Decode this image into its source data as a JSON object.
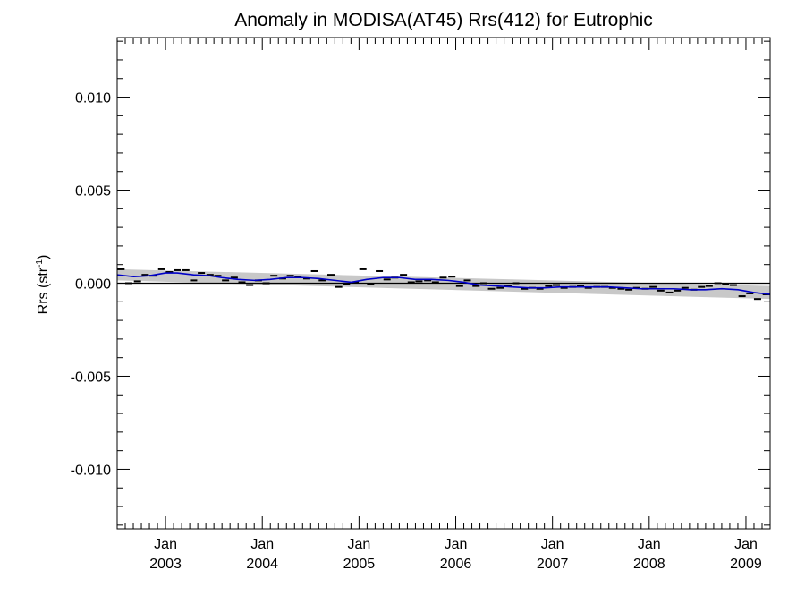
{
  "chart_data": {
    "type": "scatter",
    "title": "Anomaly in MODISA(AT45) Rrs(412) for Eutrophic",
    "xlabel": "",
    "ylabel": "Rrs (str",
    "ylabel_sup": "-1",
    "ylabel_close": ")",
    "xlim": [
      2002.5,
      2009.25
    ],
    "ylim": [
      -0.0132,
      0.0132
    ],
    "x_ticks": [
      {
        "value": 2003.0,
        "month": "Jan",
        "year": "2003"
      },
      {
        "value": 2004.0,
        "month": "Jan",
        "year": "2004"
      },
      {
        "value": 2005.0,
        "month": "Jan",
        "year": "2005"
      },
      {
        "value": 2006.0,
        "month": "Jan",
        "year": "2006"
      },
      {
        "value": 2007.0,
        "month": "Jan",
        "year": "2007"
      },
      {
        "value": 2008.0,
        "month": "Jan",
        "year": "2008"
      },
      {
        "value": 2009.0,
        "month": "Jan",
        "year": "2009"
      }
    ],
    "y_ticks": [
      {
        "value": 0.01,
        "label": "0.010"
      },
      {
        "value": 0.005,
        "label": "0.005"
      },
      {
        "value": 0.0,
        "label": "0.000"
      },
      {
        "value": -0.005,
        "label": "-0.005"
      },
      {
        "value": -0.01,
        "label": "-0.010"
      }
    ],
    "zero_line": true,
    "grid": false,
    "series": [
      {
        "kind": "markers",
        "color": "#000000",
        "points": [
          [
            2002.54,
            0.00075
          ],
          [
            2002.62,
            0.0
          ],
          [
            2002.71,
            0.0001
          ],
          [
            2002.79,
            0.00045
          ],
          [
            2002.87,
            0.0004
          ],
          [
            2002.96,
            0.00075
          ],
          [
            2003.04,
            0.0006
          ],
          [
            2003.12,
            0.0007
          ],
          [
            2003.21,
            0.0007
          ],
          [
            2003.29,
            0.00015
          ],
          [
            2003.37,
            0.00055
          ],
          [
            2003.46,
            0.00045
          ],
          [
            2003.54,
            0.0004
          ],
          [
            2003.62,
            0.00015
          ],
          [
            2003.71,
            0.0003
          ],
          [
            2003.79,
            5e-05
          ],
          [
            2003.87,
            -0.0001
          ],
          [
            2003.96,
            0.00015
          ],
          [
            2004.04,
            0.0
          ],
          [
            2004.12,
            0.0004
          ],
          [
            2004.21,
            0.00025
          ],
          [
            2004.29,
            0.0004
          ],
          [
            2004.37,
            0.00035
          ],
          [
            2004.46,
            0.00025
          ],
          [
            2004.54,
            0.00065
          ],
          [
            2004.62,
            0.00015
          ],
          [
            2004.71,
            0.00045
          ],
          [
            2004.79,
            -0.0002
          ],
          [
            2004.87,
            -5e-05
          ],
          [
            2004.96,
            5e-05
          ],
          [
            2005.04,
            0.00075
          ],
          [
            2005.12,
            -5e-05
          ],
          [
            2005.21,
            0.00065
          ],
          [
            2005.29,
            0.0002
          ],
          [
            2005.37,
            0.0003
          ],
          [
            2005.46,
            0.00045
          ],
          [
            2005.54,
            5e-05
          ],
          [
            2005.62,
            0.0001
          ],
          [
            2005.71,
            0.00015
          ],
          [
            2005.79,
            5e-05
          ],
          [
            2005.87,
            0.0003
          ],
          [
            2005.96,
            0.00035
          ],
          [
            2006.04,
            -0.00015
          ],
          [
            2006.12,
            0.00015
          ],
          [
            2006.21,
            -0.00015
          ],
          [
            2006.29,
            0.0
          ],
          [
            2006.37,
            -0.0003
          ],
          [
            2006.46,
            -0.00025
          ],
          [
            2006.54,
            -0.00015
          ],
          [
            2006.62,
            0.0
          ],
          [
            2006.71,
            -0.0003
          ],
          [
            2006.79,
            -0.00025
          ],
          [
            2006.87,
            -0.0003
          ],
          [
            2006.96,
            -0.00015
          ],
          [
            2007.04,
            -0.0001
          ],
          [
            2007.12,
            -0.00025
          ],
          [
            2007.21,
            -0.0002
          ],
          [
            2007.29,
            -0.00015
          ],
          [
            2007.37,
            -0.00025
          ],
          [
            2007.46,
            -0.0002
          ],
          [
            2007.54,
            -0.0002
          ],
          [
            2007.62,
            -0.00025
          ],
          [
            2007.71,
            -0.0003
          ],
          [
            2007.79,
            -0.00035
          ],
          [
            2007.87,
            -0.00025
          ],
          [
            2007.96,
            -0.0003
          ],
          [
            2008.04,
            -0.0002
          ],
          [
            2008.12,
            -0.0004
          ],
          [
            2008.21,
            -0.0005
          ],
          [
            2008.29,
            -0.0004
          ],
          [
            2008.37,
            -0.00025
          ],
          [
            2008.46,
            -0.00035
          ],
          [
            2008.54,
            -0.0002
          ],
          [
            2008.62,
            -0.00015
          ],
          [
            2008.71,
            0.0
          ],
          [
            2008.79,
            -5e-05
          ],
          [
            2008.87,
            -0.0001
          ],
          [
            2008.96,
            -0.0007
          ],
          [
            2009.04,
            -0.00055
          ],
          [
            2009.12,
            -0.00085
          ],
          [
            2009.21,
            -0.0006
          ]
        ]
      },
      {
        "kind": "smooth-line",
        "color": "#0000c8",
        "points": [
          [
            2002.5,
            0.00045
          ],
          [
            2002.67,
            0.00035
          ],
          [
            2002.83,
            0.0004
          ],
          [
            2003.0,
            0.00055
          ],
          [
            2003.12,
            0.00055
          ],
          [
            2003.29,
            0.00045
          ],
          [
            2003.46,
            0.0004
          ],
          [
            2003.58,
            0.0003
          ],
          [
            2003.75,
            0.0002
          ],
          [
            2003.92,
            0.00015
          ],
          [
            2004.08,
            0.0002
          ],
          [
            2004.25,
            0.0003
          ],
          [
            2004.42,
            0.0003
          ],
          [
            2004.58,
            0.00025
          ],
          [
            2004.75,
            0.00015
          ],
          [
            2004.92,
            5e-05
          ],
          [
            2005.08,
            0.0002
          ],
          [
            2005.25,
            0.0003
          ],
          [
            2005.42,
            0.0003
          ],
          [
            2005.58,
            0.0002
          ],
          [
            2005.75,
            0.0002
          ],
          [
            2005.92,
            0.00015
          ],
          [
            2006.08,
            5e-05
          ],
          [
            2006.25,
            -0.0001
          ],
          [
            2006.42,
            -0.00015
          ],
          [
            2006.58,
            -0.0002
          ],
          [
            2006.75,
            -0.00025
          ],
          [
            2006.92,
            -0.00025
          ],
          [
            2007.08,
            -0.0002
          ],
          [
            2007.25,
            -0.0002
          ],
          [
            2007.42,
            -0.0002
          ],
          [
            2007.58,
            -0.0002
          ],
          [
            2007.75,
            -0.00025
          ],
          [
            2007.92,
            -0.0003
          ],
          [
            2008.08,
            -0.0003
          ],
          [
            2008.25,
            -0.0003
          ],
          [
            2008.42,
            -0.00035
          ],
          [
            2008.58,
            -0.00035
          ],
          [
            2008.75,
            -0.0003
          ],
          [
            2008.92,
            -0.00035
          ],
          [
            2009.08,
            -0.0005
          ],
          [
            2009.25,
            -0.0006
          ]
        ]
      }
    ],
    "confidence_band": {
      "color": "#c8c8c8",
      "upper": [
        [
          2002.5,
          0.00075
        ],
        [
          2009.25,
          -0.00015
        ]
      ],
      "lower": [
        [
          2002.5,
          0.00015
        ],
        [
          2009.25,
          -0.00085
        ]
      ]
    }
  }
}
